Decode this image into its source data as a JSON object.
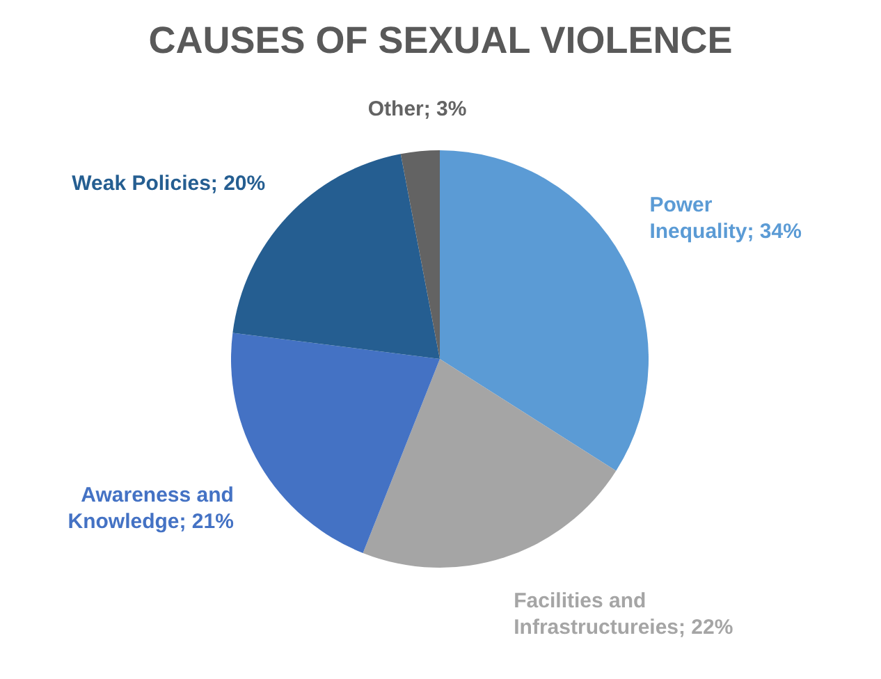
{
  "chart_data": {
    "type": "pie",
    "title": "CAUSES OF SEXUAL VIOLENCE",
    "categories": [
      "Power Inequality",
      "Facilities and Infrastructureies",
      "Awareness and Knowledge",
      "Weak Policies",
      "Other"
    ],
    "values": [
      34,
      22,
      21,
      20,
      3
    ],
    "colors": [
      "#5b9bd5",
      "#a5a5a5",
      "#4472c4",
      "#255e91",
      "#636363"
    ],
    "value_labels": [
      "34%",
      "22%",
      "21%",
      "20%",
      "3%"
    ],
    "legend": false
  }
}
